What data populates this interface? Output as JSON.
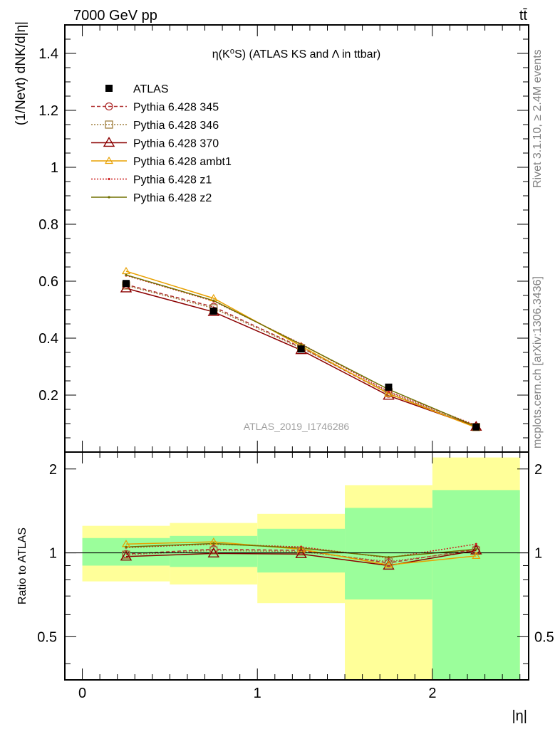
{
  "header": {
    "energy_label": "7000 GeV pp",
    "process_label": "tt̄"
  },
  "side_labels": {
    "rivet": "Rivet 3.1.10, ≥ 2.4M events",
    "mcplots": "mcplots.cern.ch [arXiv:1306.3436]"
  },
  "watermark": "ATLAS_2019_I1746286",
  "chart_data": [
    {
      "type": "line",
      "title": "η(K⁰S) (ATLAS KS and Λ in ttbar)",
      "ylabel": "(1/Nevt) dNK/d|η|",
      "xlabel": "",
      "xlim": [
        -0.1,
        2.55
      ],
      "ylim": [
        0,
        1.5
      ],
      "grid": false,
      "legend_position": "top-left",
      "x_ticks": [
        0,
        1,
        2
      ],
      "y_ticks": [
        0.2,
        0.4,
        0.6,
        0.8,
        1,
        1.2,
        1.4
      ],
      "y_tick_labels": [
        "0.2",
        "0.4",
        "0.6",
        "0.8",
        "1",
        "1.2",
        "1.4"
      ],
      "x": [
        0.25,
        0.75,
        1.25,
        1.75,
        2.25
      ],
      "series": [
        {
          "name": "ATLAS",
          "values": [
            0.592,
            0.495,
            0.362,
            0.228,
            0.088
          ],
          "color": "#000000",
          "marker": "filled-square",
          "line": "none"
        },
        {
          "name": "Pythia 6.428 345",
          "values": [
            0.588,
            0.51,
            0.368,
            0.205,
            0.089
          ],
          "color": "#b03030",
          "marker": "open-circle",
          "line": "dashed"
        },
        {
          "name": "Pythia 6.428 346",
          "values": [
            0.585,
            0.505,
            0.365,
            0.21,
            0.088
          ],
          "color": "#a08040",
          "marker": "open-square",
          "line": "dotted"
        },
        {
          "name": "Pythia 6.428 370",
          "values": [
            0.575,
            0.492,
            0.358,
            0.198,
            0.089
          ],
          "color": "#8b0000",
          "marker": "open-triangle",
          "line": "solid"
        },
        {
          "name": "Pythia 6.428 ambt1",
          "values": [
            0.635,
            0.54,
            0.372,
            0.205,
            0.086
          ],
          "color": "#e8a000",
          "marker": "open-triangle-small",
          "line": "solid"
        },
        {
          "name": "Pythia 6.428 z1",
          "values": [
            0.62,
            0.53,
            0.38,
            0.212,
            0.094
          ],
          "color": "#cc2020",
          "marker": "dot",
          "line": "dotted"
        },
        {
          "name": "Pythia 6.428 z2",
          "values": [
            0.622,
            0.532,
            0.378,
            0.22,
            0.09
          ],
          "color": "#707000",
          "marker": "dot",
          "line": "solid"
        }
      ]
    },
    {
      "type": "line",
      "title": "",
      "ylabel": "Ratio to ATLAS",
      "xlabel": "|η|",
      "xlim": [
        -0.1,
        2.55
      ],
      "ylim": [
        0.35,
        2.3
      ],
      "log_y": true,
      "x_ticks": [
        0,
        1,
        2
      ],
      "y_ticks": [
        0.5,
        1,
        2
      ],
      "y_tick_labels": [
        "0.5",
        "1",
        "2"
      ],
      "reference_line": 1,
      "x": [
        0.25,
        0.75,
        1.25,
        1.75,
        2.25
      ],
      "bands": {
        "edges": [
          0,
          0.5,
          1,
          1.5,
          2,
          2.5
        ],
        "inner_color": "#9bfe9b",
        "outer_color": "#ffff99",
        "inner": [
          [
            0.9,
            1.13
          ],
          [
            0.89,
            1.15
          ],
          [
            0.85,
            1.22
          ],
          [
            0.68,
            1.45
          ],
          [
            0.35,
            1.68
          ]
        ],
        "outer": [
          [
            0.79,
            1.25
          ],
          [
            0.77,
            1.28
          ],
          [
            0.66,
            1.38
          ],
          [
            0.35,
            1.75
          ],
          [
            0.35,
            2.2
          ]
        ]
      },
      "series": [
        {
          "name": "Pythia 6.428 345",
          "values": [
            0.99,
            1.03,
            1.02,
            0.92,
            1.03
          ],
          "color": "#b03030",
          "marker": "open-circle",
          "line": "dashed"
        },
        {
          "name": "Pythia 6.428 346",
          "values": [
            0.985,
            1.02,
            1.01,
            0.93,
            1.02
          ],
          "color": "#a08040",
          "marker": "open-square",
          "line": "dotted"
        },
        {
          "name": "Pythia 6.428 370",
          "values": [
            0.97,
            0.995,
            0.99,
            0.9,
            1.02
          ],
          "color": "#8b0000",
          "marker": "open-triangle",
          "line": "solid"
        },
        {
          "name": "Pythia 6.428 ambt1",
          "values": [
            1.075,
            1.095,
            1.03,
            0.905,
            0.975
          ],
          "color": "#e8a000",
          "marker": "open-triangle-small",
          "line": "solid"
        },
        {
          "name": "Pythia 6.428 z1",
          "values": [
            1.045,
            1.075,
            1.05,
            0.96,
            1.075
          ],
          "color": "#cc2020",
          "marker": "dot",
          "line": "dotted"
        },
        {
          "name": "Pythia 6.428 z2",
          "values": [
            1.05,
            1.08,
            1.04,
            0.965,
            1.03
          ],
          "color": "#707000",
          "marker": "dot",
          "line": "solid"
        }
      ]
    }
  ]
}
